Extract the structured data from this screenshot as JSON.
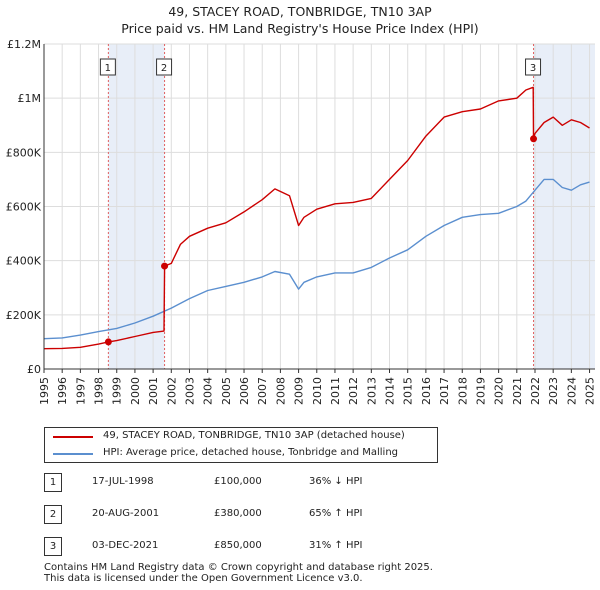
{
  "title": {
    "line1": "49, STACEY ROAD, TONBRIDGE, TN10 3AP",
    "line2": "Price paid vs. HM Land Registry's House Price Index (HPI)"
  },
  "colors": {
    "property": "#cc0000",
    "hpi": "#5b8fcf",
    "shade": "#e8eef8",
    "grid": "#dddddd",
    "vline": "#e06060"
  },
  "legend": {
    "property_label": "49, STACEY ROAD, TONBRIDGE, TN10 3AP (detached house)",
    "hpi_label": "HPI: Average price, detached house, Tonbridge and Malling"
  },
  "transactions": [
    {
      "num": "1",
      "date": "17-JUL-1998",
      "price": "£100,000",
      "hpi": "36% ↓ HPI"
    },
    {
      "num": "2",
      "date": "20-AUG-2001",
      "price": "£380,000",
      "hpi": "65% ↑ HPI"
    },
    {
      "num": "3",
      "date": "03-DEC-2021",
      "price": "£850,000",
      "hpi": "31% ↑ HPI"
    }
  ],
  "footer": {
    "line1": "Contains HM Land Registry data © Crown copyright and database right 2025.",
    "line2": "This data is licensed under the Open Government Licence v3.0."
  },
  "chart_data": {
    "type": "line",
    "xlim": [
      1995,
      2025.3
    ],
    "ylim": [
      0,
      1200000
    ],
    "x_ticks": [
      1995,
      1996,
      1997,
      1998,
      1999,
      2000,
      2001,
      2002,
      2003,
      2004,
      2005,
      2006,
      2007,
      2008,
      2009,
      2010,
      2011,
      2012,
      2013,
      2014,
      2015,
      2016,
      2017,
      2018,
      2019,
      2020,
      2021,
      2022,
      2023,
      2024,
      2025
    ],
    "y_ticks": [
      {
        "value": 0,
        "label": "£0"
      },
      {
        "value": 200000,
        "label": "£200K"
      },
      {
        "value": 400000,
        "label": "£400K"
      },
      {
        "value": 600000,
        "label": "£600K"
      },
      {
        "value": 800000,
        "label": "£800K"
      },
      {
        "value": 1000000,
        "label": "£1M"
      },
      {
        "value": 1200000,
        "label": "£1.2M"
      }
    ],
    "shaded_ranges": [
      [
        1998.54,
        2001.63
      ],
      [
        2021.92,
        2025.3
      ]
    ],
    "sales": [
      {
        "num": "1",
        "x": 1998.54,
        "y": 100000
      },
      {
        "num": "2",
        "x": 2001.63,
        "y": 380000
      },
      {
        "num": "3",
        "x": 2021.92,
        "y": 850000
      }
    ],
    "series": [
      {
        "name": "49, STACEY ROAD, TONBRIDGE, TN10 3AP (detached house)",
        "x": [
          1995,
          1996,
          1997,
          1998,
          1998.54,
          1999,
          2000,
          2001,
          2001.6,
          2001.63,
          2002,
          2002.5,
          2003,
          2004,
          2005,
          2006,
          2007,
          2007.7,
          2008.5,
          2009,
          2009.3,
          2010,
          2011,
          2012,
          2013,
          2014,
          2015,
          2016,
          2017,
          2018,
          2019,
          2020,
          2021,
          2021.5,
          2021.9,
          2021.92,
          2022,
          2022.5,
          2023,
          2023.5,
          2024,
          2024.5,
          2025
        ],
        "y": [
          75000,
          76000,
          80000,
          92000,
          100000,
          105000,
          120000,
          135000,
          140000,
          380000,
          390000,
          460000,
          490000,
          520000,
          540000,
          580000,
          625000,
          665000,
          640000,
          530000,
          560000,
          590000,
          610000,
          615000,
          630000,
          700000,
          770000,
          860000,
          930000,
          950000,
          960000,
          990000,
          1000000,
          1030000,
          1040000,
          850000,
          870000,
          910000,
          930000,
          900000,
          920000,
          910000,
          890000
        ]
      },
      {
        "name": "HPI: Average price, detached house, Tonbridge and Malling",
        "x": [
          1995,
          1996,
          1997,
          1998,
          1999,
          2000,
          2001,
          2002,
          2003,
          2004,
          2005,
          2006,
          2007,
          2007.7,
          2008.5,
          2009,
          2009.3,
          2010,
          2011,
          2012,
          2013,
          2014,
          2015,
          2016,
          2017,
          2018,
          2019,
          2020,
          2021,
          2021.5,
          2022,
          2022.5,
          2023,
          2023.5,
          2024,
          2024.5,
          2025
        ],
        "y": [
          112000,
          115000,
          125000,
          138000,
          150000,
          170000,
          195000,
          225000,
          260000,
          290000,
          305000,
          320000,
          340000,
          360000,
          350000,
          295000,
          320000,
          340000,
          355000,
          355000,
          375000,
          410000,
          440000,
          490000,
          530000,
          560000,
          570000,
          575000,
          600000,
          620000,
          660000,
          700000,
          700000,
          670000,
          660000,
          680000,
          690000
        ]
      }
    ]
  }
}
